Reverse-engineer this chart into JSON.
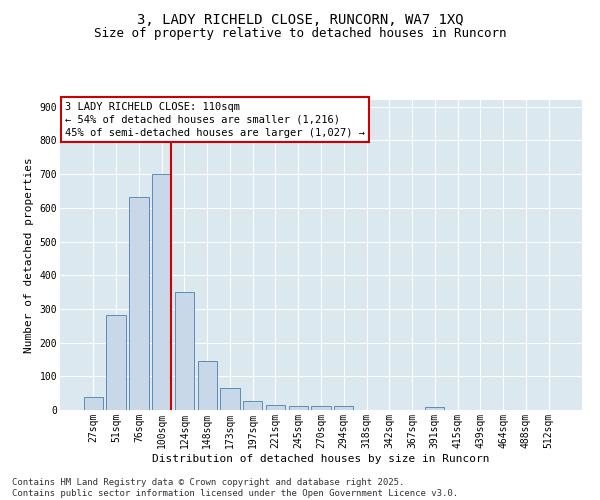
{
  "title": "3, LADY RICHELD CLOSE, RUNCORN, WA7 1XQ",
  "subtitle": "Size of property relative to detached houses in Runcorn",
  "xlabel": "Distribution of detached houses by size in Runcorn",
  "ylabel": "Number of detached properties",
  "categories": [
    "27sqm",
    "51sqm",
    "76sqm",
    "100sqm",
    "124sqm",
    "148sqm",
    "173sqm",
    "197sqm",
    "221sqm",
    "245sqm",
    "270sqm",
    "294sqm",
    "318sqm",
    "342sqm",
    "367sqm",
    "391sqm",
    "415sqm",
    "439sqm",
    "464sqm",
    "488sqm",
    "512sqm"
  ],
  "values": [
    40,
    283,
    632,
    700,
    350,
    145,
    65,
    28,
    14,
    11,
    11,
    11,
    0,
    0,
    0,
    8,
    0,
    0,
    0,
    0,
    0
  ],
  "bar_color": "#c8d8e8",
  "bar_edge_color": "#5b8db8",
  "vline_color": "#cc0000",
  "annotation_text": "3 LADY RICHELD CLOSE: 110sqm\n← 54% of detached houses are smaller (1,216)\n45% of semi-detached houses are larger (1,027) →",
  "annotation_box_color": "#cc0000",
  "ylim": [
    0,
    920
  ],
  "yticks": [
    0,
    100,
    200,
    300,
    400,
    500,
    600,
    700,
    800,
    900
  ],
  "bg_color": "#dce8f0",
  "footer_text": "Contains HM Land Registry data © Crown copyright and database right 2025.\nContains public sector information licensed under the Open Government Licence v3.0.",
  "title_fontsize": 10,
  "subtitle_fontsize": 9,
  "axis_label_fontsize": 8,
  "tick_fontsize": 7,
  "annotation_fontsize": 7.5,
  "footer_fontsize": 6.5
}
